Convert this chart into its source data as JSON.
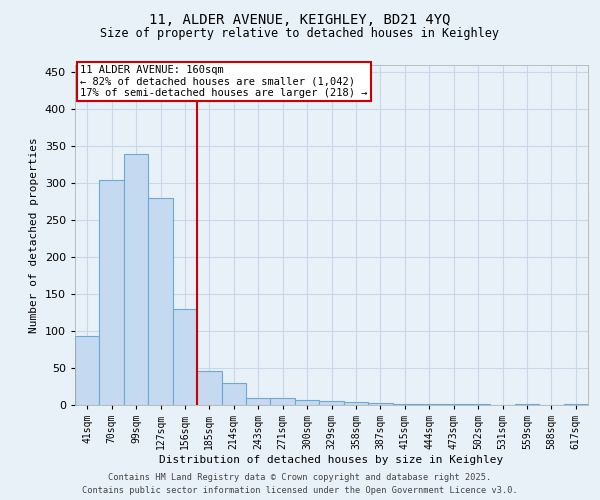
{
  "title_line1": "11, ALDER AVENUE, KEIGHLEY, BD21 4YQ",
  "title_line2": "Size of property relative to detached houses in Keighley",
  "xlabel": "Distribution of detached houses by size in Keighley",
  "ylabel": "Number of detached properties",
  "categories": [
    "41sqm",
    "70sqm",
    "99sqm",
    "127sqm",
    "156sqm",
    "185sqm",
    "214sqm",
    "243sqm",
    "271sqm",
    "300sqm",
    "329sqm",
    "358sqm",
    "387sqm",
    "415sqm",
    "444sqm",
    "473sqm",
    "502sqm",
    "531sqm",
    "559sqm",
    "588sqm",
    "617sqm"
  ],
  "values": [
    93,
    305,
    340,
    280,
    130,
    46,
    30,
    10,
    10,
    7,
    5,
    4,
    3,
    2,
    2,
    1,
    1,
    0,
    2,
    0,
    2
  ],
  "bar_color": "#c5d9f0",
  "bar_edgecolor": "#6aaad4",
  "annotation_text": "11 ALDER AVENUE: 160sqm\n← 82% of detached houses are smaller (1,042)\n17% of semi-detached houses are larger (218) →",
  "annotation_box_facecolor": "#ffffff",
  "annotation_box_edgecolor": "#cc0000",
  "vline_color": "#cc0000",
  "vline_x_index": 4,
  "ylim": [
    0,
    460
  ],
  "yticks": [
    0,
    50,
    100,
    150,
    200,
    250,
    300,
    350,
    400,
    450
  ],
  "grid_color": "#c8d8e8",
  "background_color": "#e8f0f8",
  "footer_line1": "Contains HM Land Registry data © Crown copyright and database right 2025.",
  "footer_line2": "Contains public sector information licensed under the Open Government Licence v3.0."
}
